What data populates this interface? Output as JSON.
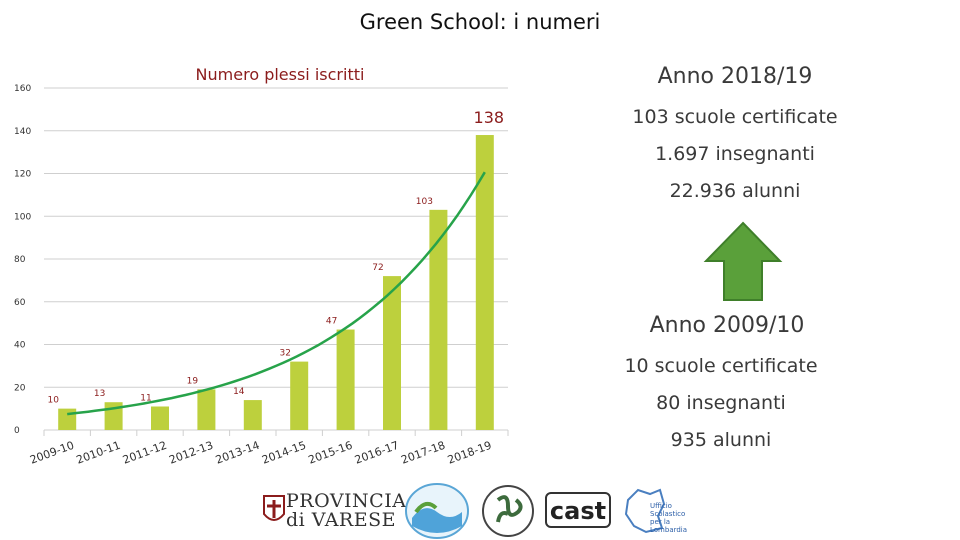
{
  "slide": {
    "title": "Green School: i numeri"
  },
  "chart_data": {
    "type": "bar",
    "title": "Numero plessi iscritti",
    "categories": [
      "2009-10",
      "2010-11",
      "2011-12",
      "2012-13",
      "2013-14",
      "2014-15",
      "2015-16",
      "2016-17",
      "2017-18",
      "2018-19"
    ],
    "values": [
      10,
      13,
      11,
      19,
      14,
      32,
      47,
      72,
      103,
      138
    ],
    "ylim": [
      0,
      160
    ],
    "yticks": [
      0,
      20,
      40,
      60,
      80,
      100,
      120,
      140,
      160
    ],
    "grid": true,
    "trendline": {
      "type": "exponential",
      "color": "#27a34a"
    },
    "colors": {
      "bar": "#bdd03d",
      "label": "#8b1c1c",
      "trend": "#27a34a",
      "grid": "#cfcfcf"
    }
  },
  "info_2018": {
    "title": "Anno 2018/19",
    "lines": [
      "103 scuole certificate",
      "1.697 insegnanti",
      "22.936 alunni"
    ]
  },
  "info_2009": {
    "title": "Anno 2009/10",
    "lines": [
      "10 scuole certificate",
      "80 insegnanti",
      "935 alunni"
    ]
  },
  "arrow": {
    "icon": "up-arrow-icon",
    "color": "#5aa03a"
  },
  "logos": {
    "provincia": "PROVINCIA di VARESE",
    "cast": "cast",
    "ufficio": "Ufficio Scolastico per la Lombardia"
  }
}
